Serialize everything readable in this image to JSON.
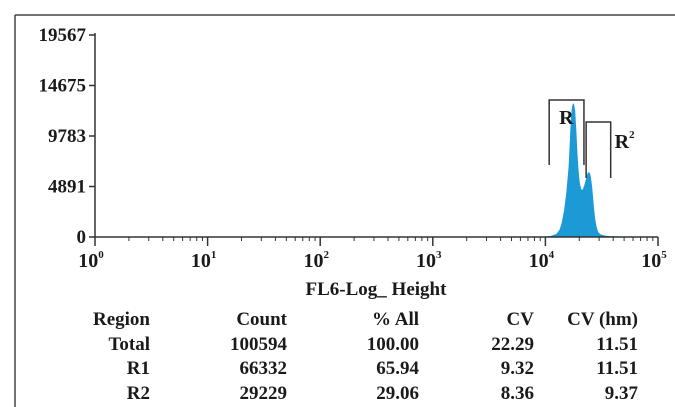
{
  "chart_data": {
    "type": "area",
    "title": "",
    "xlabel": "FL6-Log_ Height",
    "ylabel": "",
    "x_scale": "log",
    "xlim": [
      1,
      100000
    ],
    "ylim": [
      0,
      19567
    ],
    "x_ticks": [
      {
        "base": "10",
        "exp": "0",
        "value": 1
      },
      {
        "base": "10",
        "exp": "1",
        "value": 10
      },
      {
        "base": "10",
        "exp": "2",
        "value": 100
      },
      {
        "base": "10",
        "exp": "3",
        "value": 1000
      },
      {
        "base": "10",
        "exp": "4",
        "value": 10000
      },
      {
        "base": "10",
        "exp": "5",
        "value": 100000
      }
    ],
    "y_ticks": [
      {
        "label": "0",
        "value": 0
      },
      {
        "label": "4891",
        "value": 4891
      },
      {
        "label": "9783",
        "value": 9783
      },
      {
        "label": "14675",
        "value": 14675
      },
      {
        "label": "19567",
        "value": 19567
      }
    ],
    "fill_color": "#1b9ad6",
    "grid": false,
    "series": [
      {
        "x": [
          10000,
          11220,
          12590,
          13500,
          14130,
          14800,
          15500,
          16220,
          16600,
          17000,
          17400,
          17780,
          18200,
          18620,
          19050,
          19500,
          19950,
          20420,
          20890,
          21380,
          21880,
          22390,
          22900,
          23440,
          23990,
          24550,
          25120,
          25700,
          26300,
          26920,
          27540,
          28180,
          28840,
          29510,
          30900,
          33110,
          35480,
          38020,
          40740,
          45000,
          50000
        ],
        "y": [
          0,
          60,
          250,
          700,
          1400,
          2600,
          4300,
          6800,
          9000,
          11300,
          12600,
          12900,
          12200,
          10400,
          8200,
          6400,
          5300,
          4800,
          4500,
          4500,
          4700,
          5000,
          5400,
          5800,
          6200,
          6200,
          5800,
          4900,
          3700,
          2500,
          1600,
          1000,
          600,
          380,
          200,
          110,
          60,
          30,
          15,
          5,
          0
        ]
      }
    ],
    "regions": [
      {
        "label": "R",
        "sup": "",
        "x_start": 10800,
        "x_end": 22000
      },
      {
        "label": "R",
        "sup": "2",
        "x_start": 23000,
        "x_end": 38000
      }
    ]
  },
  "stats_table": {
    "headers": [
      "Region",
      "Count",
      "% All",
      "CV",
      "CV (hm)"
    ],
    "rows": [
      [
        "Total",
        "100594",
        "100.00",
        "22.29",
        "11.51"
      ],
      [
        "R1",
        "66332",
        "65.94",
        "9.32",
        "11.51"
      ],
      [
        "R2",
        "29229",
        "29.06",
        "8.36",
        "9.37"
      ]
    ]
  }
}
